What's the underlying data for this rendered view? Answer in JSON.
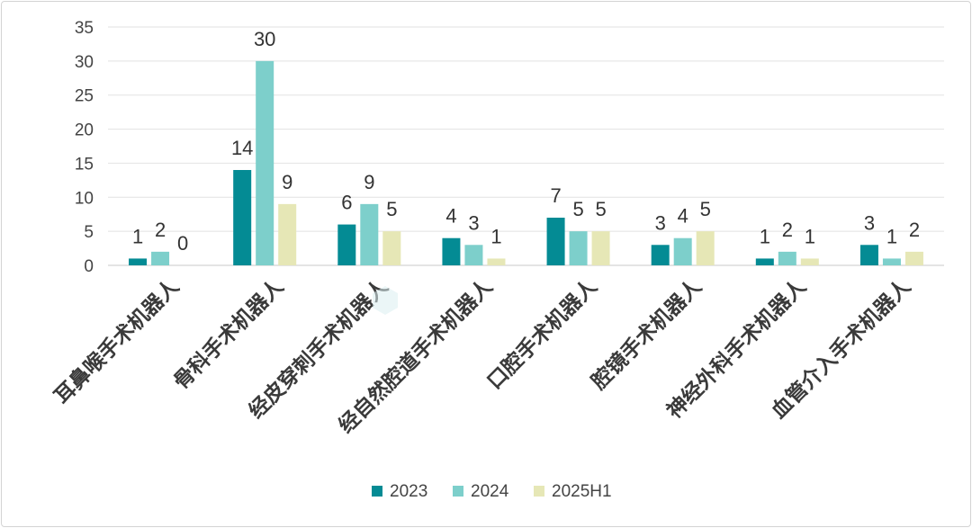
{
  "chart_data": {
    "type": "bar",
    "title": "",
    "xlabel": "",
    "ylabel": "",
    "ylim": [
      0,
      35
    ],
    "yticks": [
      0,
      5,
      10,
      15,
      20,
      25,
      30,
      35
    ],
    "grid": true,
    "legend_position": "bottom",
    "categories": [
      "耳鼻喉手术机器人",
      "骨科手术机器人",
      "经皮穿刺手术机器人",
      "经自然腔道手术机器人",
      "口腔手术机器人",
      "腔镜手术机器人",
      "神经外科手术机器人",
      "血管介入手术机器人"
    ],
    "series": [
      {
        "name": "2023",
        "color": "#048b94",
        "values": [
          1,
          14,
          6,
          4,
          7,
          3,
          1,
          3
        ]
      },
      {
        "name": "2024",
        "color": "#7dcfcb",
        "values": [
          2,
          30,
          9,
          3,
          5,
          4,
          2,
          1
        ]
      },
      {
        "name": "2025H1",
        "color": "#e6e7b6",
        "values": [
          0,
          9,
          5,
          1,
          5,
          5,
          1,
          2
        ]
      }
    ]
  }
}
